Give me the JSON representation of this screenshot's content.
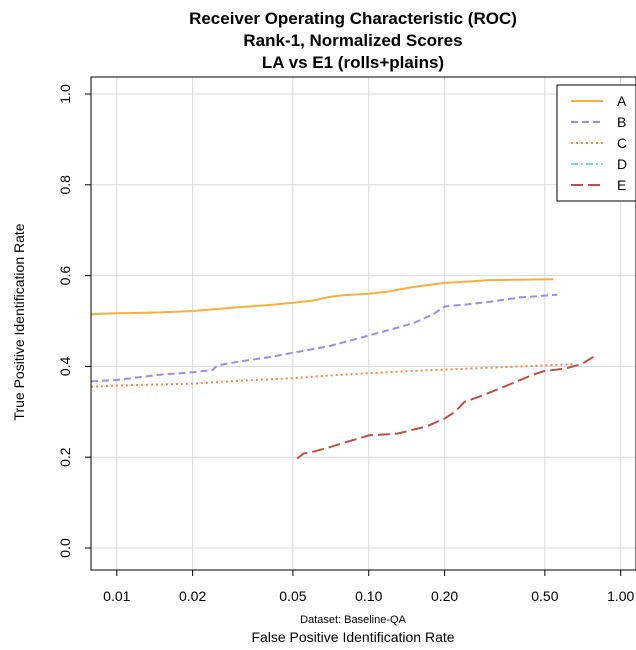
{
  "chart_data": {
    "type": "line",
    "title": [
      "Receiver Operating Characteristic (ROC)",
      "Rank-1, Normalized Scores",
      "LA vs E1 (rolls+plains)"
    ],
    "xlabel": "False Positive Identification Rate",
    "ylabel": "True Positive Identification Rate",
    "note": "Dataset: Baseline-QA",
    "x_scale": "log",
    "xlim": [
      0.0079,
      1.15
    ],
    "ylim": [
      0,
      1
    ],
    "x_ticks": [
      {
        "value": 0.01,
        "label": "0.01"
      },
      {
        "value": 0.02,
        "label": "0.02"
      },
      {
        "value": 0.05,
        "label": "0.05"
      },
      {
        "value": 0.1,
        "label": "0.10"
      },
      {
        "value": 0.2,
        "label": "0.20"
      },
      {
        "value": 0.5,
        "label": "0.50"
      },
      {
        "value": 1.0,
        "label": "1.00"
      }
    ],
    "y_ticks": [
      {
        "value": 0.0,
        "label": "0.0"
      },
      {
        "value": 0.2,
        "label": "0.2"
      },
      {
        "value": 0.4,
        "label": "0.4"
      },
      {
        "value": 0.6,
        "label": "0.6"
      },
      {
        "value": 0.8,
        "label": "0.8"
      },
      {
        "value": 1.0,
        "label": "1.0"
      }
    ],
    "grid": true,
    "legend_position": "top-right",
    "series": [
      {
        "name": "A",
        "color": "#F5B041",
        "dash": "solid",
        "points": [
          [
            0.0079,
            0.515
          ],
          [
            0.01,
            0.517
          ],
          [
            0.015,
            0.519
          ],
          [
            0.02,
            0.522
          ],
          [
            0.03,
            0.53
          ],
          [
            0.04,
            0.535
          ],
          [
            0.05,
            0.54
          ],
          [
            0.06,
            0.545
          ],
          [
            0.07,
            0.553
          ],
          [
            0.08,
            0.557
          ],
          [
            0.1,
            0.56
          ],
          [
            0.12,
            0.565
          ],
          [
            0.15,
            0.575
          ],
          [
            0.2,
            0.584
          ],
          [
            0.25,
            0.587
          ],
          [
            0.3,
            0.59
          ],
          [
            0.4,
            0.591
          ],
          [
            0.54,
            0.592
          ]
        ]
      },
      {
        "name": "B",
        "color": "#9B8FE0",
        "dash": "dashed",
        "points": [
          [
            0.0079,
            0.367
          ],
          [
            0.01,
            0.37
          ],
          [
            0.013,
            0.378
          ],
          [
            0.015,
            0.382
          ],
          [
            0.02,
            0.387
          ],
          [
            0.024,
            0.392
          ],
          [
            0.025,
            0.402
          ],
          [
            0.03,
            0.41
          ],
          [
            0.04,
            0.42
          ],
          [
            0.05,
            0.43
          ],
          [
            0.07,
            0.445
          ],
          [
            0.1,
            0.468
          ],
          [
            0.12,
            0.48
          ],
          [
            0.15,
            0.495
          ],
          [
            0.18,
            0.515
          ],
          [
            0.2,
            0.532
          ],
          [
            0.25,
            0.537
          ],
          [
            0.3,
            0.542
          ],
          [
            0.4,
            0.552
          ],
          [
            0.56,
            0.558
          ]
        ]
      },
      {
        "name": "C",
        "color": "#F08A4B",
        "dash": "dotted",
        "points": [
          [
            0.0079,
            0.355
          ],
          [
            0.01,
            0.358
          ],
          [
            0.02,
            0.362
          ],
          [
            0.03,
            0.368
          ],
          [
            0.05,
            0.374
          ],
          [
            0.07,
            0.38
          ],
          [
            0.1,
            0.385
          ],
          [
            0.15,
            0.39
          ],
          [
            0.2,
            0.393
          ],
          [
            0.3,
            0.397
          ],
          [
            0.4,
            0.4
          ],
          [
            0.55,
            0.403
          ],
          [
            0.66,
            0.405
          ]
        ]
      },
      {
        "name": "D",
        "color": "#7FD6D6",
        "dash": "dashdot",
        "points": []
      },
      {
        "name": "E",
        "color": "#B5544C",
        "dash": "longdash",
        "points": [
          [
            0.052,
            0.197
          ],
          [
            0.055,
            0.208
          ],
          [
            0.06,
            0.212
          ],
          [
            0.07,
            0.222
          ],
          [
            0.08,
            0.232
          ],
          [
            0.1,
            0.248
          ],
          [
            0.13,
            0.252
          ],
          [
            0.17,
            0.268
          ],
          [
            0.2,
            0.285
          ],
          [
            0.22,
            0.3
          ],
          [
            0.24,
            0.322
          ],
          [
            0.28,
            0.335
          ],
          [
            0.32,
            0.348
          ],
          [
            0.38,
            0.365
          ],
          [
            0.45,
            0.382
          ],
          [
            0.5,
            0.39
          ],
          [
            0.6,
            0.395
          ],
          [
            0.7,
            0.405
          ],
          [
            0.8,
            0.425
          ]
        ]
      }
    ]
  }
}
